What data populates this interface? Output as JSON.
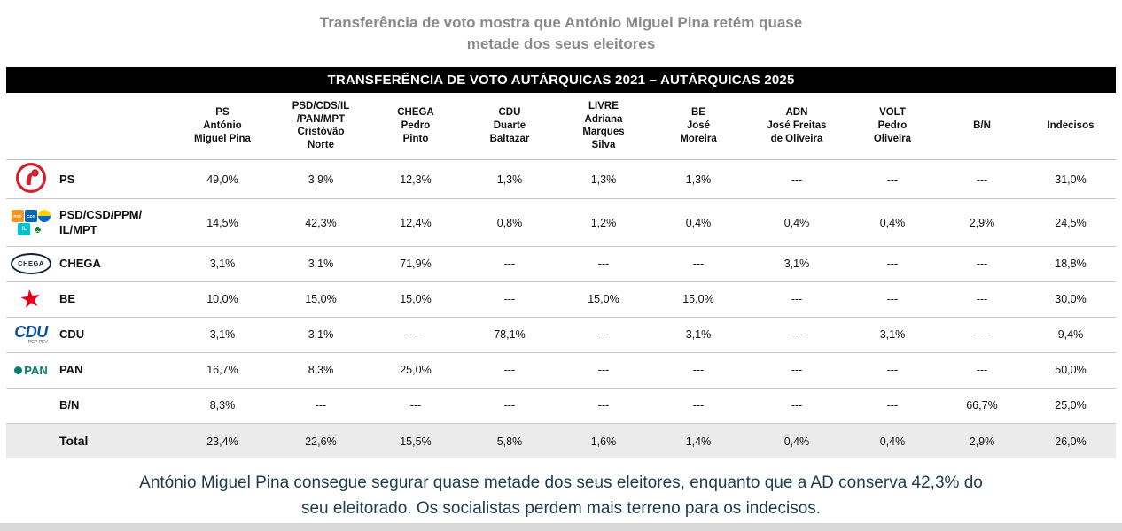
{
  "title": "Transferência de voto mostra que António Miguel Pina retém quase\nmetade dos seus eleitores",
  "display": {
    "table_header": "TRANSFERÊNCIA DE VOTO AUTÁRQUICAS 2021 –  AUTÁRQUICAS 2025",
    "columns": [
      "PS\nAntónio\nMiguel Pina",
      "PSD/CDS/IL\n/PAN/MPT\nCristóvão\nNorte",
      "CHEGA\nPedro\nPinto",
      "CDU\nDuarte\nBaltazar",
      "LIVRE\nAdriana\nMarques\nSilva",
      "BE\nJosé\nMoreira",
      "ADN\nJosé Freitas\nde Oliveira",
      "VOLT\nPedro\nOliveira",
      "B/N",
      "Indecisos"
    ],
    "rows": [
      {
        "party": "PS",
        "logo": "ps-icon",
        "total": false,
        "values": [
          "49,0%",
          "3,9%",
          "12,3%",
          "1,3%",
          "1,3%",
          "1,3%",
          "---",
          "---",
          "---",
          "31,0%"
        ]
      },
      {
        "party": "PSD/CSD/PPM/\nIL/MPT",
        "logo": "coalition-icons",
        "total": false,
        "values": [
          "14,5%",
          "42,3%",
          "12,4%",
          "0,8%",
          "1,2%",
          "0,4%",
          "0,4%",
          "0,4%",
          "2,9%",
          "24,5%"
        ]
      },
      {
        "party": "CHEGA",
        "logo": "chega-icon",
        "total": false,
        "values": [
          "3,1%",
          "3,1%",
          "71,9%",
          "---",
          "---",
          "---",
          "3,1%",
          "---",
          "---",
          "18,8%"
        ]
      },
      {
        "party": "BE",
        "logo": "be-star-icon",
        "total": false,
        "values": [
          "10,0%",
          "15,0%",
          "15,0%",
          "---",
          "15,0%",
          "15,0%",
          "---",
          "---",
          "---",
          "30,0%"
        ]
      },
      {
        "party": "CDU",
        "logo": "cdu-icon",
        "total": false,
        "values": [
          "3,1%",
          "3,1%",
          "---",
          "78,1%",
          "---",
          "3,1%",
          "---",
          "3,1%",
          "---",
          "9,4%"
        ]
      },
      {
        "party": "PAN",
        "logo": "pan-icon",
        "total": false,
        "values": [
          "16,7%",
          "8,3%",
          "25,0%",
          "---",
          "---",
          "---",
          "---",
          "---",
          "---",
          "50,0%"
        ]
      },
      {
        "party": "B/N",
        "logo": null,
        "total": false,
        "values": [
          "8,3%",
          "---",
          "---",
          "---",
          "---",
          "---",
          "---",
          "---",
          "66,7%",
          "25,0%"
        ]
      },
      {
        "party": "Total",
        "logo": null,
        "total": true,
        "values": [
          "23,4%",
          "22,6%",
          "15,5%",
          "5,8%",
          "1,6%",
          "1,4%",
          "0,4%",
          "0,4%",
          "2,9%",
          "26,0%"
        ]
      }
    ]
  },
  "footer": "António Miguel Pina consegue segurar quase metade dos seus eleitores, enquanto que a AD conserva 42,3% do\nseu eleitorado. Os socialistas perdem mais terreno para os indecisos.",
  "chart_data": {
    "type": "table",
    "title": "TRANSFERÊNCIA DE VOTO AUTÁRQUICAS 2021 – AUTÁRQUICAS 2025",
    "unit": "percent",
    "columns": [
      "PS António Miguel Pina",
      "PSD/CDS/IL/PAN/MPT Cristóvão Norte",
      "CHEGA Pedro Pinto",
      "CDU Duarte Baltazar",
      "LIVRE Adriana Marques Silva",
      "BE José Moreira",
      "ADN José Freitas de Oliveira",
      "VOLT Pedro Oliveira",
      "B/N",
      "Indecisos"
    ],
    "rows": [
      {
        "party_2021": "PS",
        "values": [
          49.0,
          3.9,
          12.3,
          1.3,
          1.3,
          1.3,
          null,
          null,
          null,
          31.0
        ]
      },
      {
        "party_2021": "PSD/CSD/PPM/IL/MPT",
        "values": [
          14.5,
          42.3,
          12.4,
          0.8,
          1.2,
          0.4,
          0.4,
          0.4,
          2.9,
          24.5
        ]
      },
      {
        "party_2021": "CHEGA",
        "values": [
          3.1,
          3.1,
          71.9,
          null,
          null,
          null,
          3.1,
          null,
          null,
          18.8
        ]
      },
      {
        "party_2021": "BE",
        "values": [
          10.0,
          15.0,
          15.0,
          null,
          15.0,
          15.0,
          null,
          null,
          null,
          30.0
        ]
      },
      {
        "party_2021": "CDU",
        "values": [
          3.1,
          3.1,
          null,
          78.1,
          null,
          3.1,
          null,
          3.1,
          null,
          9.4
        ]
      },
      {
        "party_2021": "PAN",
        "values": [
          16.7,
          8.3,
          25.0,
          null,
          null,
          null,
          null,
          null,
          null,
          50.0
        ]
      },
      {
        "party_2021": "B/N",
        "values": [
          8.3,
          null,
          null,
          null,
          null,
          null,
          null,
          null,
          66.7,
          25.0
        ]
      },
      {
        "party_2021": "Total",
        "values": [
          23.4,
          22.6,
          15.5,
          5.8,
          1.6,
          1.4,
          0.4,
          0.4,
          2.9,
          26.0
        ]
      }
    ]
  },
  "colors": {
    "title_text": "#8a8a8a",
    "header_bar_bg": "#000000",
    "header_bar_text": "#ffffff",
    "total_row_bg": "#ebebeb",
    "footer_text": "#1d3c4e",
    "row_border": "#c9c9c9",
    "ps_red": "#d1202f",
    "be_red": "#e2001a",
    "cdu_blue": "#0d4f9e",
    "pan_teal": "#0a7d6e",
    "chega_dark": "#14213d"
  }
}
